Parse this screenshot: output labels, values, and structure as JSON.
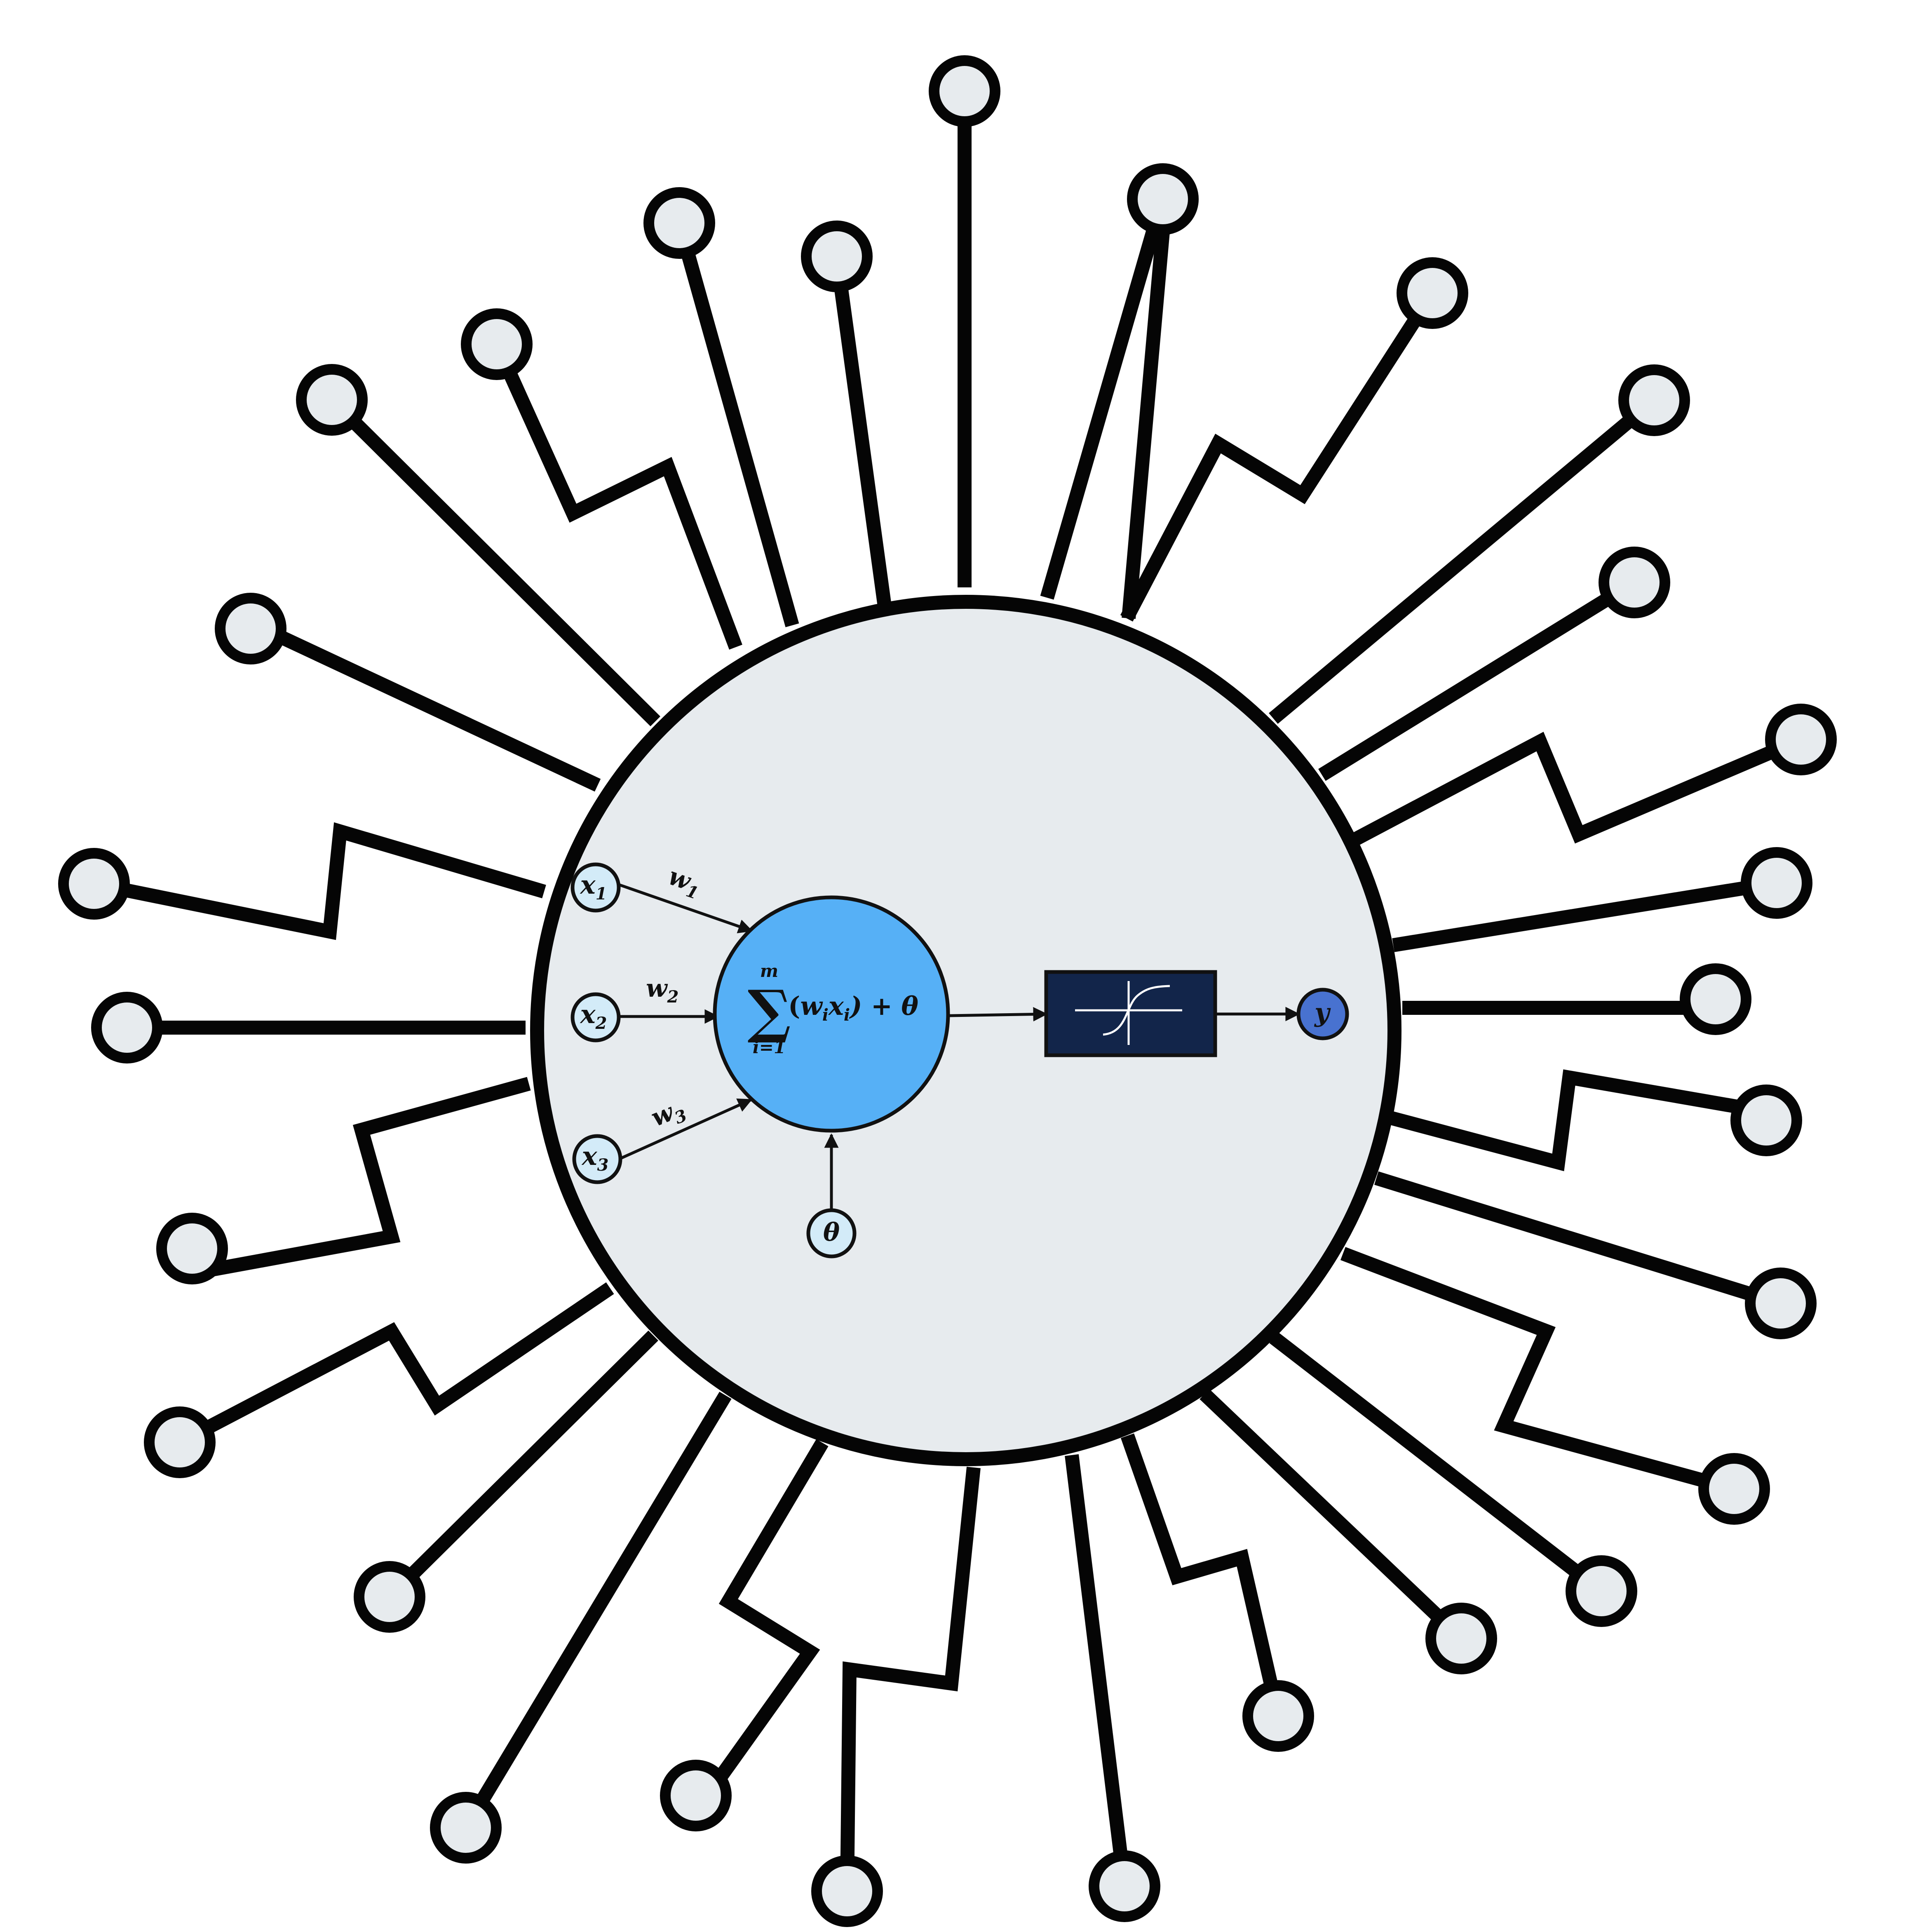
{
  "colors": {
    "background": "#ffffff",
    "soma_fill": "#e7ebee",
    "outline": "#050505",
    "terminal_fill": "#e7ebee",
    "summation_fill": "#56b0f6",
    "input_node_fill": "#d3ebf8",
    "activation_box_fill": "#12254a",
    "activation_curve": "#ffffff",
    "output_node_fill": "#4872d0"
  },
  "icons": {
    "activation": "sigmoid-curve-icon"
  },
  "dendrite_count": 32,
  "neuron_model": {
    "inputs": [
      {
        "symbol": "x",
        "sub": "1"
      },
      {
        "symbol": "x",
        "sub": "2"
      },
      {
        "symbol": "x",
        "sub": "3"
      }
    ],
    "weights": [
      {
        "symbol": "w",
        "sub": "1"
      },
      {
        "symbol": "w",
        "sub": "2"
      },
      {
        "symbol": "w",
        "sub": "3"
      }
    ],
    "summation": {
      "sigma": "∑",
      "upper": "m",
      "lower": "i=1",
      "open": "(",
      "w": "w",
      "w_sub": "i",
      "x": "x",
      "x_sub": "i",
      "close": ") + θ"
    },
    "bias": "θ",
    "output": "y"
  }
}
